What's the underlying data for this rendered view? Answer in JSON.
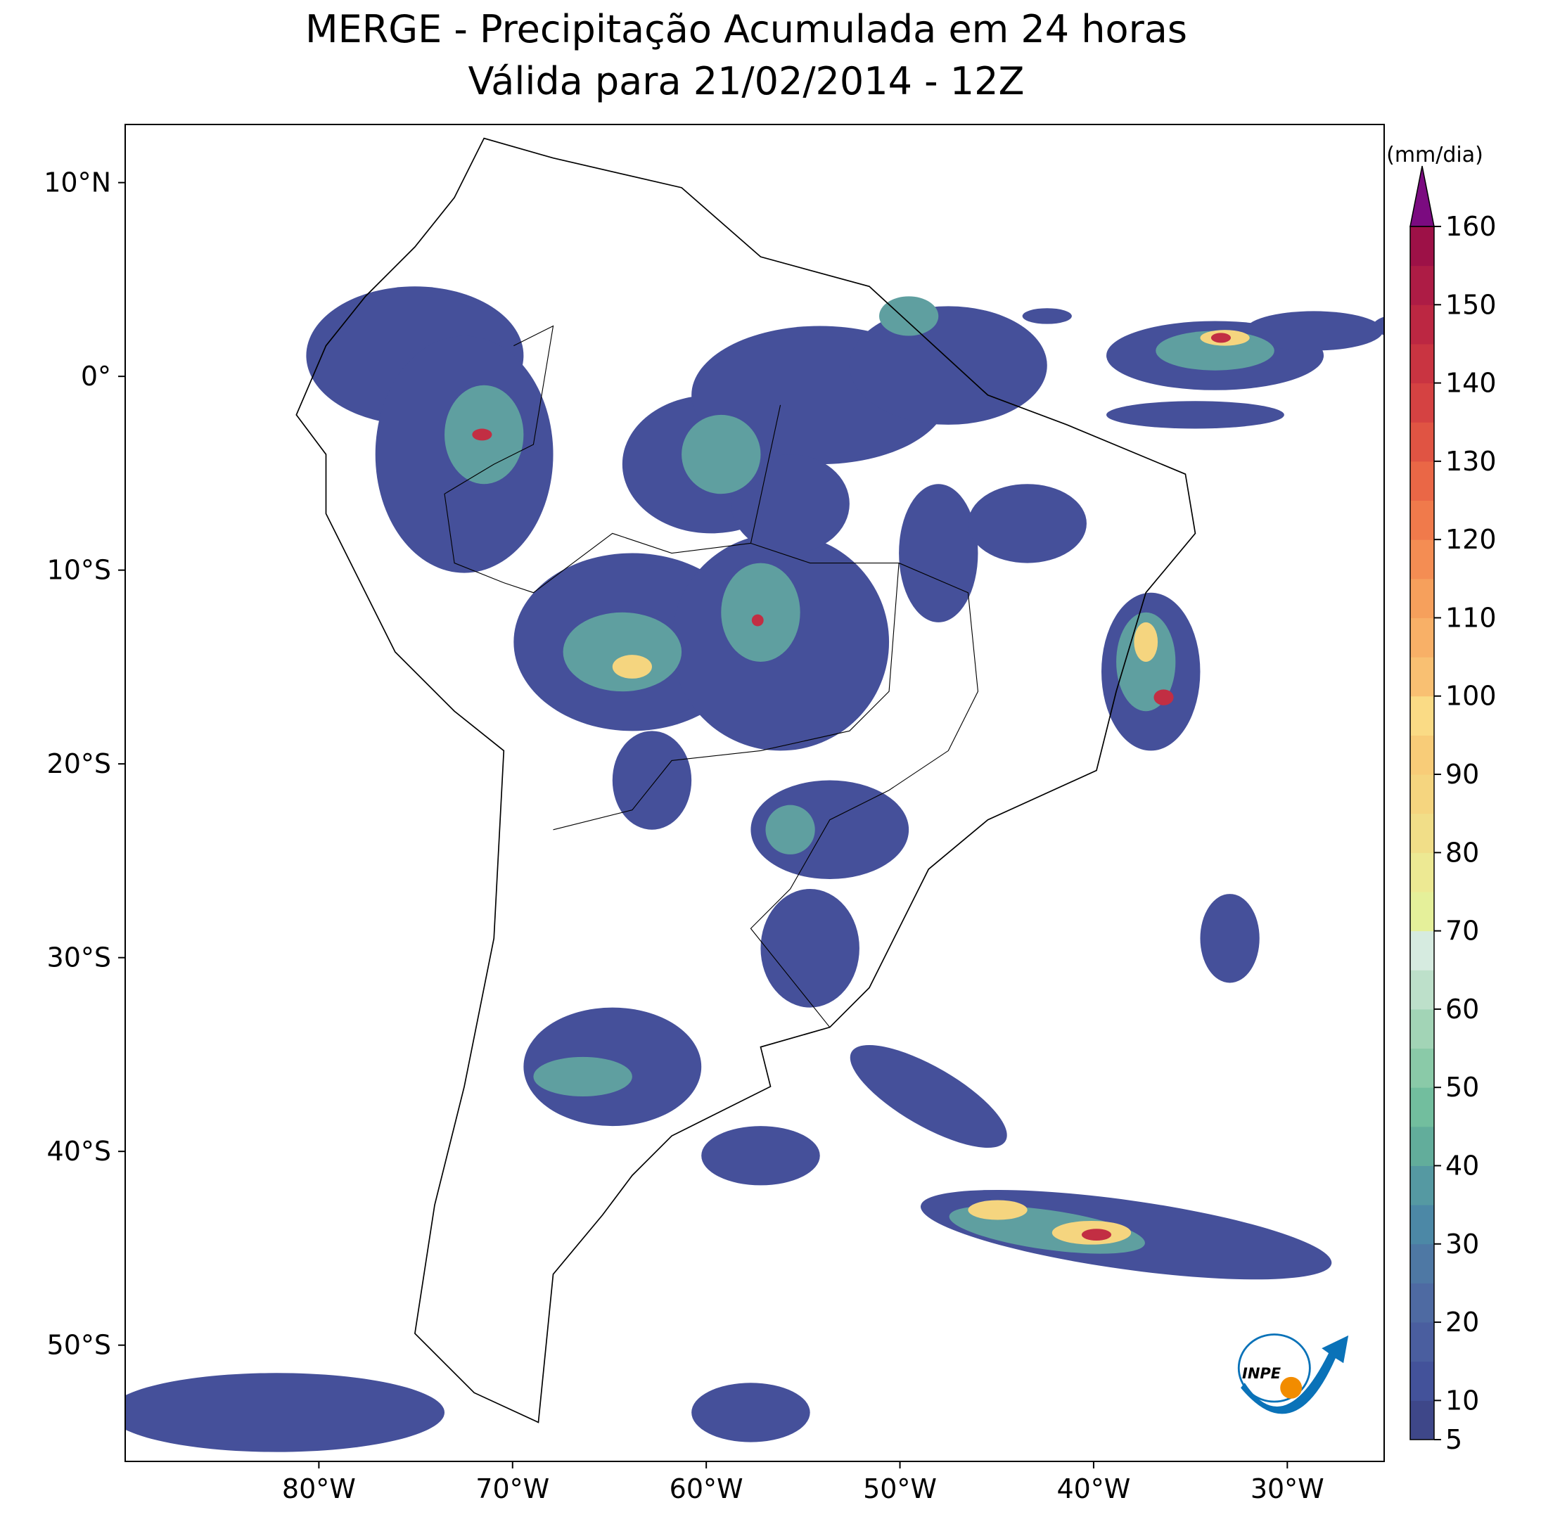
{
  "title": [
    "MERGE - Precipitação Acumulada em 24 horas",
    "Válida para 21/02/2014 - 12Z"
  ],
  "map": {
    "lonlim": [
      -90,
      -25
    ],
    "latlim": [
      -56,
      13
    ],
    "lon_ticks": [
      {
        "value": -80,
        "label": "80°W"
      },
      {
        "value": -70,
        "label": "70°W"
      },
      {
        "value": -60,
        "label": "60°W"
      },
      {
        "value": -50,
        "label": "50°W"
      },
      {
        "value": -40,
        "label": "40°W"
      },
      {
        "value": -30,
        "label": "30°W"
      }
    ],
    "lat_ticks": [
      {
        "value": 10,
        "label": "10°N"
      },
      {
        "value": 0,
        "label": "0°"
      },
      {
        "value": -10,
        "label": "10°S"
      },
      {
        "value": -20,
        "label": "20°S"
      },
      {
        "value": -30,
        "label": "30°S"
      },
      {
        "value": -40,
        "label": "40°S"
      },
      {
        "value": -50,
        "label": "50°S"
      }
    ]
  },
  "colorbar": {
    "label": "(mm/dia)",
    "lim": [
      5,
      160
    ],
    "ticks": [
      5,
      10,
      20,
      30,
      40,
      50,
      60,
      70,
      80,
      90,
      100,
      110,
      120,
      130,
      140,
      150,
      160
    ],
    "colors": [
      "#3e4789",
      "#43529a",
      "#4a5e9f",
      "#4e6aa2",
      "#4e78a4",
      "#4c88a6",
      "#5599a2",
      "#62ad9b",
      "#72be9e",
      "#8acaa8",
      "#a2d4b6",
      "#bde0ca",
      "#d6ebe0",
      "#e5f09a",
      "#ede993",
      "#f1de88",
      "#f5d57f",
      "#f8cc78",
      "#fadb85",
      "#f9c072",
      "#f8b067",
      "#f6a05c",
      "#f48d53",
      "#f07a4b",
      "#ea6746",
      "#e05443",
      "#d54242",
      "#c93441",
      "#bc2742",
      "#ad1c45",
      "#9d1147"
    ],
    "extend_color": "#7b0b80"
  },
  "logo": "INPE"
}
